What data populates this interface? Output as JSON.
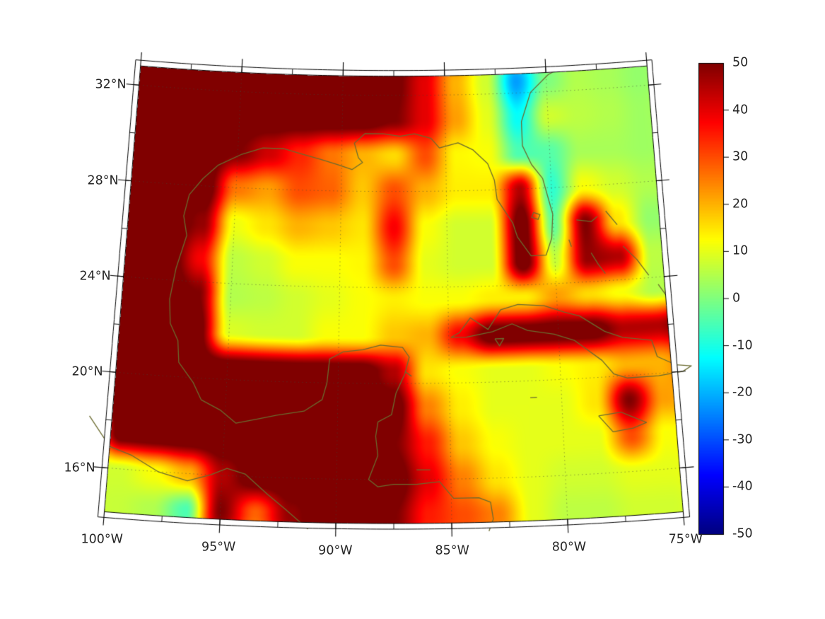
{
  "figure": {
    "background": "#ffffff"
  },
  "chart_data": {
    "type": "heatmap",
    "title": "",
    "description_of_view": "Filled color field over the Gulf of Mexico and northwest Caribbean on a conic map projection with graticule and fancy frame",
    "projection": {
      "name": "conic",
      "lon_range_w": [
        100,
        75
      ],
      "lat_range_n": [
        14.17,
        32.8
      ],
      "central_meridian_w": 87.5
    },
    "colormap": "jet",
    "value_range": [
      -50,
      50
    ],
    "grid": {
      "lons_w": [
        101,
        99.5,
        98,
        96.5,
        95,
        93.5,
        92,
        90.5,
        89,
        87.5,
        86,
        84.5,
        83,
        81.5,
        80,
        78.5,
        77,
        75.5,
        74
      ],
      "lats_n": [
        34,
        32.5,
        31,
        29.5,
        28,
        26.5,
        25,
        23.5,
        22,
        20.5,
        19,
        17.5,
        16,
        14.5,
        13
      ],
      "values": [
        [
          55,
          55,
          55,
          55,
          55,
          55,
          55,
          55,
          55,
          55,
          48,
          28,
          10,
          -5,
          2,
          4,
          5,
          3,
          4
        ],
        [
          55,
          55,
          55,
          55,
          55,
          55,
          55,
          55,
          55,
          52,
          40,
          20,
          8,
          -22,
          0,
          5,
          4,
          2,
          4
        ],
        [
          55,
          55,
          55,
          55,
          55,
          55,
          55,
          55,
          55,
          50,
          40,
          22,
          10,
          -12,
          8,
          6,
          5,
          3,
          5
        ],
        [
          55,
          55,
          55,
          55,
          50,
          42,
          34,
          26,
          20,
          16,
          30,
          13,
          12,
          -5,
          -4,
          4,
          4,
          3,
          4
        ],
        [
          55,
          55,
          55,
          55,
          26,
          22,
          30,
          28,
          18,
          30,
          20,
          14,
          14,
          45,
          -8,
          12,
          8,
          5,
          5
        ],
        [
          55,
          55,
          55,
          48,
          11,
          15,
          20,
          18,
          15,
          38,
          12,
          8,
          8,
          55,
          -3,
          50,
          15,
          2,
          2
        ],
        [
          55,
          55,
          55,
          38,
          6,
          8,
          12,
          12,
          13,
          30,
          10,
          8,
          8,
          55,
          7,
          48,
          45,
          6,
          5
        ],
        [
          55,
          55,
          55,
          50,
          5,
          6,
          8,
          10,
          12,
          14,
          12,
          12,
          14,
          14,
          22,
          16,
          12,
          5,
          6
        ],
        [
          55,
          55,
          55,
          55,
          9,
          8,
          8,
          12,
          12,
          18,
          20,
          38,
          55,
          55,
          55,
          55,
          45,
          45,
          55
        ],
        [
          55,
          55,
          55,
          55,
          55,
          55,
          55,
          55,
          55,
          45,
          15,
          12,
          10,
          10,
          12,
          14,
          20,
          20,
          30
        ],
        [
          55,
          55,
          55,
          55,
          55,
          55,
          55,
          55,
          55,
          55,
          25,
          14,
          10,
          10,
          10,
          15,
          50,
          22,
          20
        ],
        [
          15,
          55,
          55,
          55,
          55,
          55,
          55,
          55,
          55,
          50,
          35,
          18,
          12,
          10,
          10,
          10,
          30,
          12,
          14
        ],
        [
          8,
          8,
          12,
          20,
          45,
          55,
          55,
          55,
          55,
          55,
          40,
          25,
          15,
          10,
          8,
          8,
          10,
          10,
          12
        ],
        [
          8,
          7,
          5,
          -5,
          50,
          28,
          48,
          55,
          55,
          50,
          35,
          30,
          25,
          10,
          6,
          6,
          8,
          8,
          10
        ],
        [
          8,
          7,
          4,
          0,
          35,
          15,
          40,
          55,
          55,
          45,
          30,
          28,
          22,
          10,
          6,
          6,
          8,
          8,
          10
        ]
      ]
    },
    "x_axis": {
      "tick_lons_w": [
        100,
        95,
        90,
        85,
        80,
        75
      ],
      "tick_labels": [
        "100°W",
        "95°W",
        "90°W",
        "85°W",
        "80°W",
        "75°W"
      ]
    },
    "y_axis": {
      "tick_lats_n": [
        32,
        28,
        24,
        20,
        16
      ],
      "tick_labels": [
        "32°N",
        "28°N",
        "24°N",
        "20°N",
        "16°N"
      ]
    },
    "graticule": {
      "lat_lines": [
        16,
        20,
        24,
        28,
        32
      ],
      "lon_lines": [
        95,
        90,
        85,
        80
      ],
      "style": "dotted"
    },
    "colorbar": {
      "min": -50,
      "max": 50,
      "tick_values": [
        50,
        40,
        30,
        20,
        10,
        0,
        -10,
        -20,
        -30,
        -40,
        -50
      ],
      "tick_labels": [
        "50",
        "40",
        "30",
        "20",
        "10",
        "0",
        "-10",
        "-20",
        "-30",
        "-40",
        "-50"
      ],
      "colormap": "jet"
    },
    "colors": {
      "coastline": "#6b6b2f",
      "graticule": "#4a4a38",
      "frame": "#000000",
      "text": "#262626",
      "background": "#ffffff"
    },
    "coastlines": [
      {
        "name": "us-east-and-gulf-coast",
        "points": [
          [
            79.2,
            33.0
          ],
          [
            79.9,
            32.7
          ],
          [
            80.8,
            32.0
          ],
          [
            81.3,
            30.8
          ],
          [
            81.3,
            29.8
          ],
          [
            80.9,
            29.0
          ],
          [
            80.4,
            28.4
          ],
          [
            80.0,
            26.9
          ],
          [
            80.1,
            25.9
          ],
          [
            80.4,
            25.2
          ],
          [
            81.1,
            25.2
          ],
          [
            81.7,
            26.0
          ],
          [
            81.9,
            26.6
          ],
          [
            82.6,
            27.6
          ],
          [
            82.7,
            28.4
          ],
          [
            83.0,
            29.1
          ],
          [
            83.7,
            29.7
          ],
          [
            84.4,
            30.0
          ],
          [
            85.3,
            29.8
          ],
          [
            85.7,
            30.2
          ],
          [
            86.5,
            30.4
          ],
          [
            87.2,
            30.3
          ],
          [
            88.0,
            30.4
          ],
          [
            88.9,
            30.4
          ],
          [
            89.4,
            30.0
          ],
          [
            89.2,
            29.4
          ],
          [
            89.0,
            29.2
          ],
          [
            89.5,
            28.9
          ],
          [
            90.2,
            29.1
          ],
          [
            91.0,
            29.3
          ],
          [
            91.9,
            29.5
          ],
          [
            92.8,
            29.7
          ],
          [
            93.8,
            29.7
          ],
          [
            94.8,
            29.4
          ],
          [
            95.9,
            28.9
          ],
          [
            96.6,
            28.3
          ],
          [
            97.2,
            27.6
          ],
          [
            97.4,
            26.7
          ],
          [
            97.2,
            25.9
          ],
          [
            97.6,
            24.5
          ],
          [
            97.8,
            23.2
          ],
          [
            97.7,
            22.2
          ],
          [
            97.3,
            21.5
          ],
          [
            97.2,
            20.6
          ],
          [
            96.5,
            19.8
          ],
          [
            96.1,
            19.1
          ],
          [
            95.2,
            18.7
          ],
          [
            94.5,
            18.2
          ],
          [
            93.6,
            18.4
          ],
          [
            92.7,
            18.6
          ],
          [
            91.5,
            18.8
          ],
          [
            90.7,
            19.3
          ],
          [
            90.5,
            20.0
          ],
          [
            90.4,
            21.0
          ],
          [
            89.8,
            21.3
          ],
          [
            88.9,
            21.4
          ],
          [
            88.1,
            21.6
          ],
          [
            87.1,
            21.5
          ],
          [
            86.8,
            21.1
          ],
          [
            87.0,
            20.4
          ],
          [
            87.4,
            19.6
          ],
          [
            87.6,
            18.7
          ],
          [
            88.2,
            18.4
          ],
          [
            88.3,
            17.8
          ],
          [
            88.2,
            17.0
          ],
          [
            88.6,
            16.0
          ],
          [
            88.2,
            15.7
          ],
          [
            87.5,
            15.8
          ],
          [
            86.5,
            15.8
          ],
          [
            85.5,
            15.9
          ],
          [
            84.9,
            15.2
          ],
          [
            83.8,
            15.2
          ],
          [
            83.3,
            15.0
          ],
          [
            83.2,
            14.3
          ],
          [
            83.4,
            13.8
          ]
        ]
      },
      {
        "name": "pacific-coast",
        "points": [
          [
            101,
            18.1
          ],
          [
            100.0,
            16.9
          ],
          [
            99.0,
            16.6
          ],
          [
            97.8,
            16.0
          ],
          [
            96.5,
            15.7
          ],
          [
            95.5,
            16.0
          ],
          [
            94.8,
            16.3
          ],
          [
            94.0,
            16.1
          ],
          [
            93.0,
            15.3
          ],
          [
            92.2,
            14.7
          ],
          [
            91.2,
            13.9
          ]
        ]
      },
      {
        "name": "cuba",
        "points": [
          [
            84.9,
            21.9
          ],
          [
            84.5,
            22.1
          ],
          [
            84.0,
            22.7
          ],
          [
            83.2,
            22.2
          ],
          [
            82.6,
            23.0
          ],
          [
            81.8,
            23.2
          ],
          [
            80.6,
            23.1
          ],
          [
            79.7,
            22.8
          ],
          [
            79.0,
            22.6
          ],
          [
            77.9,
            21.9
          ],
          [
            77.1,
            21.6
          ],
          [
            75.8,
            21.4
          ],
          [
            75.6,
            20.7
          ],
          [
            74.8,
            20.3
          ],
          [
            74.1,
            20.2
          ],
          [
            74.5,
            20.0
          ],
          [
            75.6,
            19.9
          ],
          [
            77.0,
            19.9
          ],
          [
            77.6,
            20.1
          ],
          [
            78.1,
            20.7
          ],
          [
            79.3,
            21.6
          ],
          [
            80.2,
            21.9
          ],
          [
            81.4,
            22.1
          ],
          [
            82.1,
            22.4
          ],
          [
            83.0,
            22.1
          ],
          [
            84.2,
            21.9
          ],
          [
            84.9,
            21.9
          ]
        ]
      },
      {
        "name": "isla-juventud",
        "points": [
          [
            82.9,
            21.8
          ],
          [
            82.5,
            21.8
          ],
          [
            82.7,
            21.5
          ],
          [
            82.9,
            21.8
          ]
        ]
      },
      {
        "name": "lake-okeechobee",
        "points": [
          [
            80.9,
            27.0
          ],
          [
            80.6,
            26.9
          ],
          [
            80.7,
            26.7
          ],
          [
            81.0,
            26.8
          ],
          [
            80.9,
            27.0
          ]
        ]
      },
      {
        "name": "grand-bahama",
        "points": [
          [
            78.9,
            26.6
          ],
          [
            78.2,
            26.5
          ],
          [
            77.9,
            26.7
          ]
        ]
      },
      {
        "name": "abaco",
        "points": [
          [
            77.5,
            26.9
          ],
          [
            77.0,
            26.3
          ]
        ]
      },
      {
        "name": "andros",
        "points": [
          [
            78.3,
            25.2
          ],
          [
            78.0,
            24.7
          ],
          [
            77.7,
            24.3
          ]
        ]
      },
      {
        "name": "eleuthera",
        "points": [
          [
            76.8,
            25.4
          ],
          [
            76.2,
            24.8
          ],
          [
            75.7,
            24.1
          ]
        ]
      },
      {
        "name": "long-island-bahamas",
        "points": [
          [
            75.3,
            23.7
          ],
          [
            74.9,
            23.1
          ]
        ]
      },
      {
        "name": "bimini",
        "points": [
          [
            79.3,
            25.8
          ],
          [
            79.2,
            25.5
          ]
        ]
      },
      {
        "name": "jamaica",
        "points": [
          [
            78.4,
            18.4
          ],
          [
            77.4,
            18.5
          ],
          [
            76.3,
            18.0
          ],
          [
            76.9,
            17.8
          ],
          [
            77.8,
            17.7
          ],
          [
            78.4,
            18.4
          ]
        ]
      },
      {
        "name": "cayman",
        "points": [
          [
            81.4,
            19.3
          ],
          [
            81.1,
            19.3
          ]
        ]
      },
      {
        "name": "cozumel",
        "points": [
          [
            87.0,
            20.5
          ],
          [
            86.7,
            20.3
          ]
        ]
      },
      {
        "name": "bay-islands",
        "points": [
          [
            86.5,
            16.4
          ],
          [
            85.9,
            16.4
          ]
        ]
      }
    ]
  }
}
